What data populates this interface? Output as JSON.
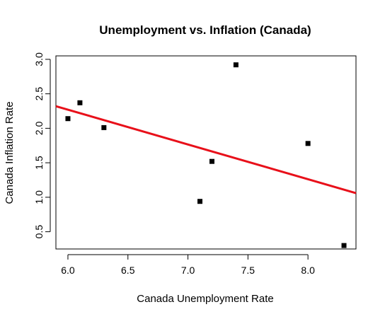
{
  "chart_data": {
    "type": "scatter",
    "title": "Unemployment vs. Inflation (Canada)",
    "xlabel": "Canada Unemployment Rate",
    "ylabel": "Canada Inflation Rate",
    "xlim": [
      5.9,
      8.4
    ],
    "ylim": [
      0.25,
      3.05
    ],
    "x_ticks": [
      "6.0",
      "6.5",
      "7.0",
      "7.5",
      "8.0"
    ],
    "y_ticks": [
      "0.5",
      "1.0",
      "1.5",
      "2.0",
      "2.5",
      "3.0"
    ],
    "points": [
      {
        "x": 6.0,
        "y": 2.14
      },
      {
        "x": 6.1,
        "y": 2.37
      },
      {
        "x": 6.3,
        "y": 2.01
      },
      {
        "x": 7.1,
        "y": 0.94
      },
      {
        "x": 7.2,
        "y": 1.52
      },
      {
        "x": 7.4,
        "y": 2.92
      },
      {
        "x": 8.0,
        "y": 1.78
      },
      {
        "x": 8.3,
        "y": 0.3
      }
    ],
    "regression_line": {
      "x": [
        5.9,
        8.4
      ],
      "y": [
        2.32,
        1.06
      ],
      "color": "#e8101a"
    },
    "marker_color": "#000000",
    "grid": false,
    "legend": "none"
  }
}
